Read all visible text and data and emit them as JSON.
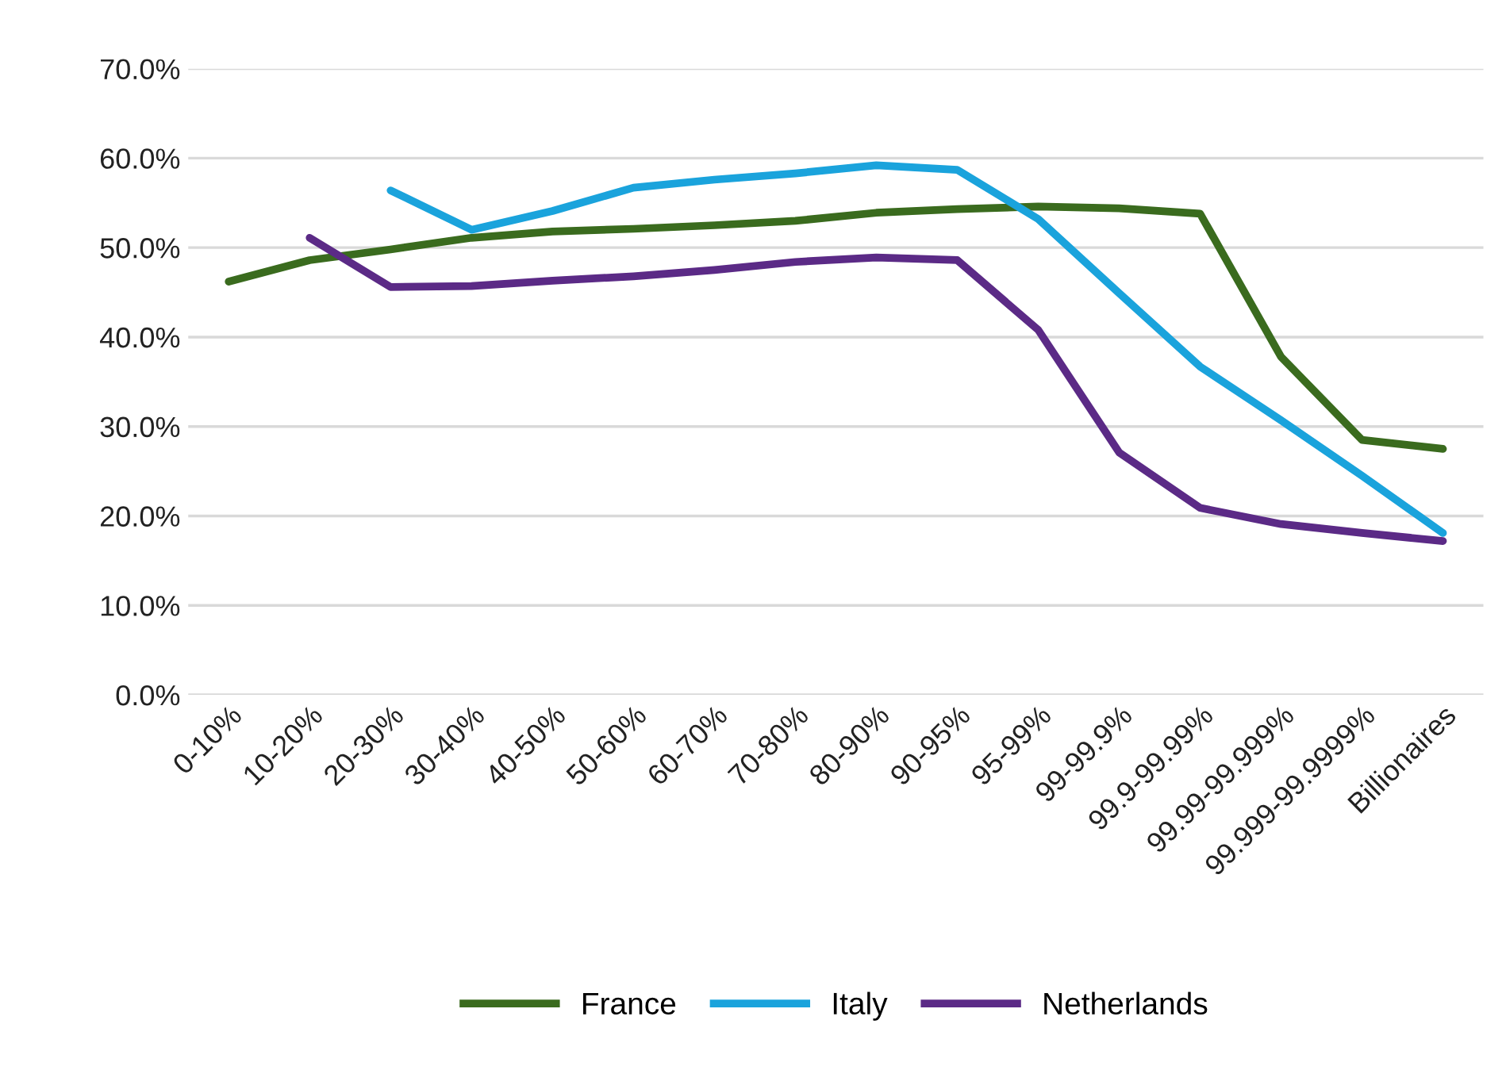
{
  "chart_data": {
    "type": "line",
    "categories": [
      "0-10%",
      "10-20%",
      "20-30%",
      "30-40%",
      "40-50%",
      "50-60%",
      "60-70%",
      "70-80%",
      "80-90%",
      "90-95%",
      "95-99%",
      "99-99.9%",
      "99.9-99.99%",
      "99.99-99.999%",
      "99.999-99.9999%",
      "Billionaires"
    ],
    "series": [
      {
        "name": "France",
        "color": "#3a6b1e",
        "values": [
          46.2,
          48.6,
          49.8,
          51.1,
          51.8,
          52.1,
          52.5,
          53.0,
          53.9,
          54.3,
          54.6,
          54.4,
          53.8,
          37.8,
          28.5,
          27.5
        ]
      },
      {
        "name": "Italy",
        "color": "#1aa3dc",
        "values": [
          null,
          null,
          56.4,
          52.0,
          54.1,
          56.7,
          57.6,
          58.3,
          59.2,
          58.7,
          53.2,
          44.9,
          36.7,
          30.7,
          24.5,
          18.1
        ]
      },
      {
        "name": "Netherlands",
        "color": "#5b2a86",
        "values": [
          null,
          51.1,
          45.6,
          45.7,
          46.3,
          46.8,
          47.5,
          48.4,
          48.9,
          48.6,
          40.8,
          27.1,
          20.9,
          19.1,
          18.1,
          17.2
        ]
      }
    ],
    "ylim": [
      0,
      70
    ],
    "yticks": [
      {
        "value": 0,
        "label": "0.0%"
      },
      {
        "value": 10,
        "label": "10.0%"
      },
      {
        "value": 20,
        "label": "20.0%"
      },
      {
        "value": 30,
        "label": "30.0%"
      },
      {
        "value": 40,
        "label": "40.0%"
      },
      {
        "value": 50,
        "label": "50.0%"
      },
      {
        "value": 60,
        "label": "60.0%"
      },
      {
        "value": 70,
        "label": "70.0%"
      }
    ],
    "grid": "y",
    "legend": "bottom",
    "marker": "none",
    "line_style": "solid"
  }
}
